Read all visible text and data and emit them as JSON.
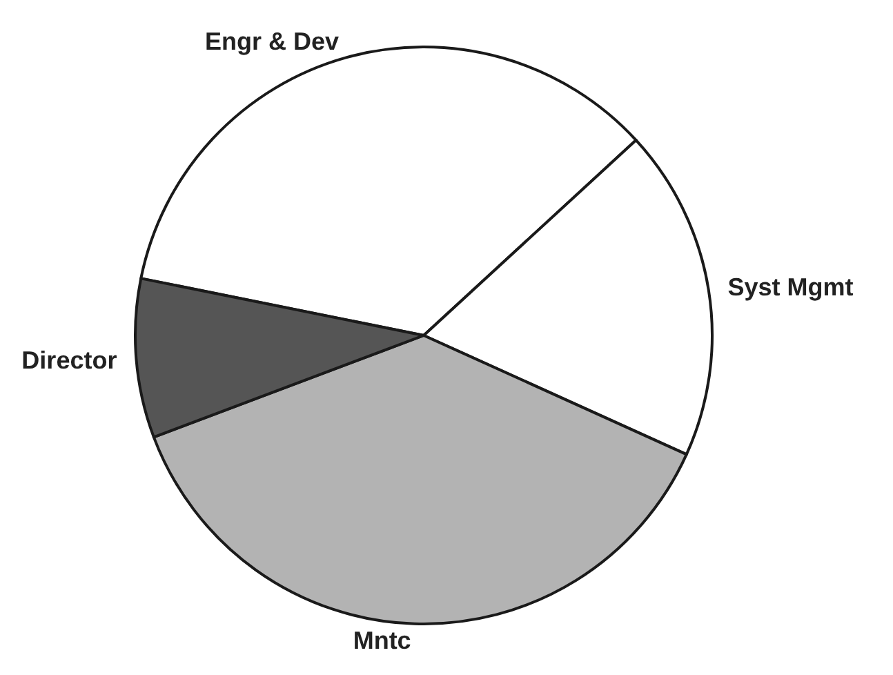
{
  "chart_data": {
    "type": "pie",
    "categories": [
      "Engr & Dev",
      "Syst Mgmt",
      "Mntc",
      "Director"
    ],
    "values": [
      35,
      18.6,
      37.5,
      8.9
    ],
    "colors": [
      "#ffffff",
      "#ffffff",
      "#b3b3b3",
      "#555555"
    ]
  }
}
